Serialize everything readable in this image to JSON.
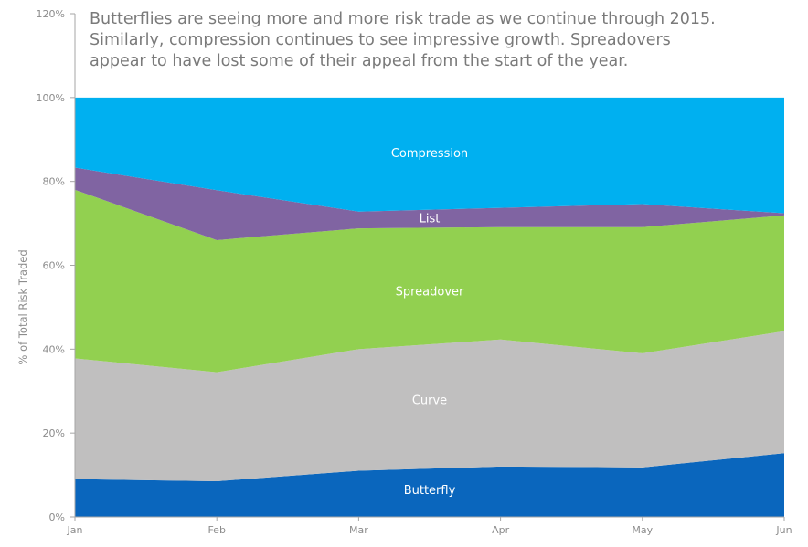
{
  "title": "Butterflies are seeing more and more risk trade as we continue through 2015.\nSimilarly, compression continues to see impressive growth. Spreadovers\nappear to have lost some of their appeal from the start of the year.",
  "chart_data": {
    "type": "area",
    "stacked": true,
    "percent": true,
    "categories": [
      "Jan",
      "Feb",
      "Mar",
      "Apr",
      "May",
      "Jun"
    ],
    "ylabel": "% of Total Risk Traded",
    "yticks": [
      "0%",
      "20%",
      "40%",
      "60%",
      "80%",
      "100%",
      "120%"
    ],
    "ylim": [
      0,
      120
    ],
    "grid": false,
    "legend": "inline-labels",
    "series": [
      {
        "name": "Butterfly",
        "color": "#0a66bd",
        "values": [
          9,
          8.5,
          11,
          12,
          11.8,
          15.2
        ]
      },
      {
        "name": "Curve",
        "color": "#c0bfbf",
        "values": [
          28.8,
          26,
          29,
          30.3,
          27.2,
          29.1
        ]
      },
      {
        "name": "Spreadover",
        "color": "#92d050",
        "values": [
          40.2,
          31.5,
          28.8,
          26.8,
          30.1,
          27.6
        ]
      },
      {
        "name": "List",
        "color": "#8064a2",
        "values": [
          5.3,
          11.9,
          4,
          4.6,
          5.5,
          0.5
        ]
      },
      {
        "name": "Compression",
        "color": "#00b0f0",
        "values": [
          16.7,
          22.1,
          27.2,
          26.3,
          25.4,
          27.6
        ]
      }
    ]
  }
}
